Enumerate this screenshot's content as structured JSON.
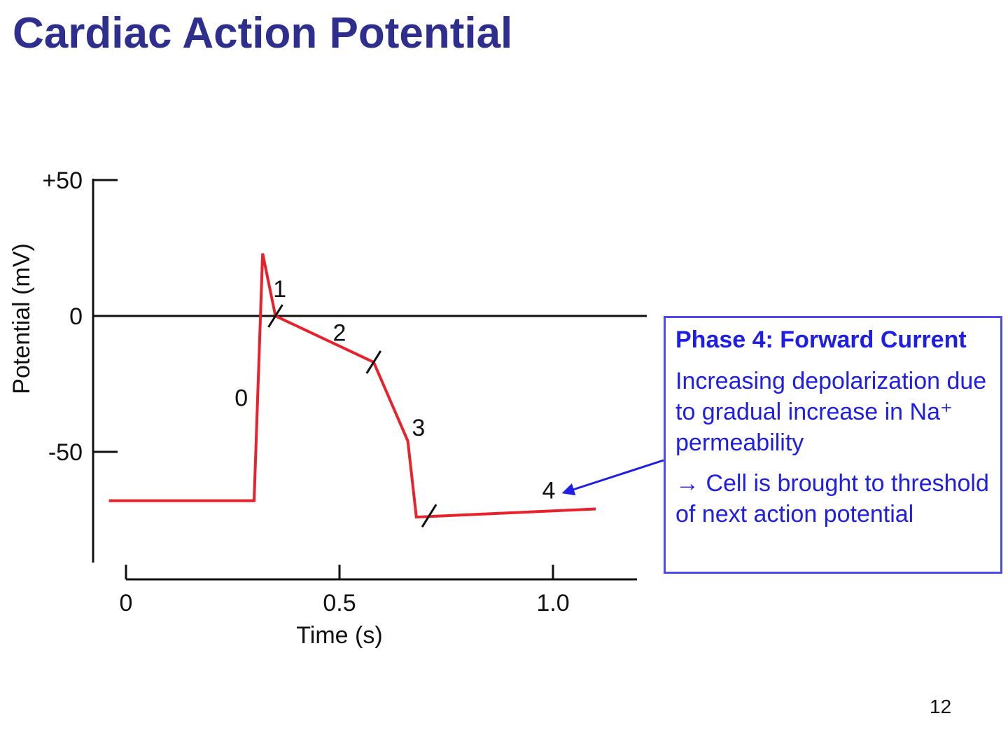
{
  "slide": {
    "title": "Cardiac Action Potential",
    "page_number": "12"
  },
  "info_box": {
    "heading": "Phase 4: Forward Current",
    "body": "Increasing depolarization due to gradual increase in Na⁺ permeability",
    "result": "→ Cell is brought to threshold of next action potential",
    "color": "#1e1ee6"
  },
  "chart_data": {
    "type": "line",
    "title": "",
    "xlabel": "Time (s)",
    "ylabel": "Potential (mV)",
    "xlim": [
      -0.07,
      1.2
    ],
    "ylim": [
      -90,
      50
    ],
    "x_ticks": [
      {
        "value": 0,
        "label": "0"
      },
      {
        "value": 0.5,
        "label": "0.5"
      },
      {
        "value": 1.0,
        "label": "1.0"
      }
    ],
    "y_ticks": [
      {
        "value": 50,
        "label": "+50"
      },
      {
        "value": 0,
        "label": "0"
      },
      {
        "value": -50,
        "label": "-50"
      }
    ],
    "reference_line_y": 0,
    "series": [
      {
        "color": "#e8212a",
        "x": [
          -0.04,
          0.3,
          0.32,
          0.35,
          0.58,
          0.66,
          0.68,
          1.1
        ],
        "y": [
          -68,
          -68,
          23,
          0,
          -17,
          -46,
          -74,
          -71
        ]
      }
    ],
    "phases": [
      {
        "label": "0",
        "x": 0.27,
        "y": -30
      },
      {
        "label": "1",
        "x": 0.36,
        "y": 10
      },
      {
        "label": "2",
        "x": 0.5,
        "y": -6
      },
      {
        "label": "3",
        "x": 0.685,
        "y": -41
      },
      {
        "label": "4",
        "x": 0.99,
        "y": -64
      }
    ],
    "phase_boundaries": [
      {
        "x": 0.35,
        "y": 0
      },
      {
        "x": 0.58,
        "y": -17
      },
      {
        "x": 0.71,
        "y": -73.5
      }
    ]
  }
}
